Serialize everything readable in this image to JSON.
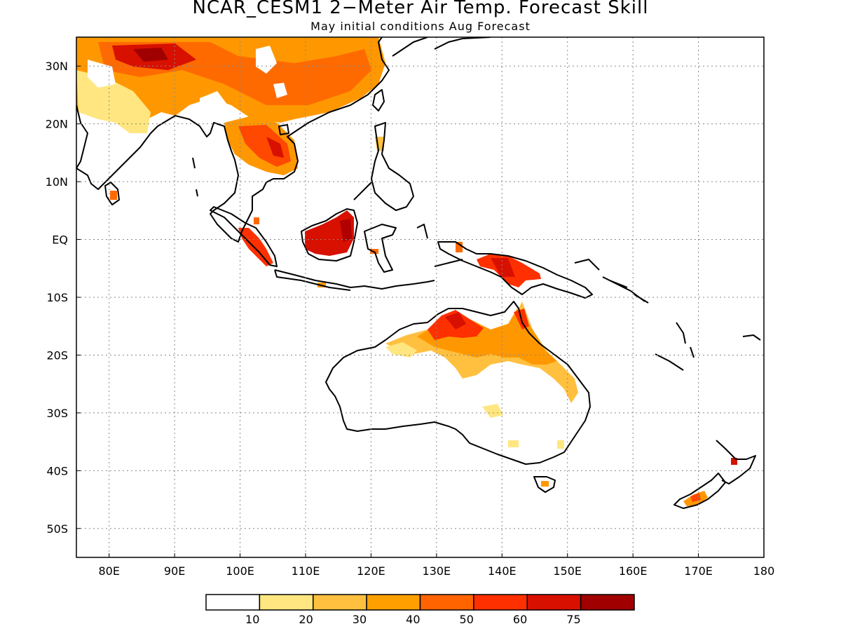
{
  "title": "NCAR_CESM1 2−Meter Air Temp. Forecast Skill",
  "subtitle": "May initial conditions  Aug Forecast",
  "map": {
    "lon_range": [
      75,
      180
    ],
    "lat_range": [
      -55,
      35
    ],
    "lat_ticks": [
      "30N",
      "20N",
      "10N",
      "EQ",
      "10S",
      "20S",
      "30S",
      "40S",
      "50S"
    ],
    "lat_values": [
      30,
      20,
      10,
      0,
      -10,
      -20,
      -30,
      -40,
      -50
    ],
    "lon_ticks": [
      "80E",
      "90E",
      "100E",
      "110E",
      "120E",
      "130E",
      "140E",
      "150E",
      "160E",
      "170E",
      "180"
    ],
    "lon_values": [
      80,
      90,
      100,
      110,
      120,
      130,
      140,
      150,
      160,
      170,
      180
    ],
    "grid": "dotted"
  },
  "colorbar": {
    "labels": [
      "10",
      "20",
      "30",
      "40",
      "50",
      "60",
      "75"
    ],
    "colors": [
      "#ffffff",
      "#ffe680",
      "#ffc040",
      "#ffa000",
      "#ff6400",
      "#ff3000",
      "#d81000",
      "#a00000"
    ]
  }
}
